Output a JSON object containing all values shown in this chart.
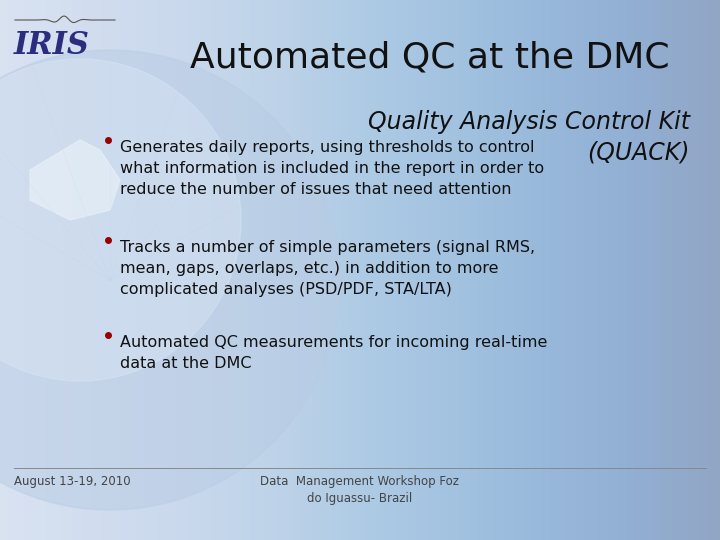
{
  "title": "Automated QC at the DMC",
  "subtitle": "Quality Analysis Control Kit\n(QUACK)",
  "bullet_points": [
    "Automated QC measurements for incoming real-time\ndata at the DMC",
    "Tracks a number of simple parameters (signal RMS,\nmean, gaps, overlaps, etc.) in addition to more\ncomplicated analyses (PSD/PDF, STA/LTA)",
    "Generates daily reports, using thresholds to control\nwhat information is included in the report in order to\nreduce the number of issues that need attention"
  ],
  "footer_left": "August 13-19, 2010",
  "footer_right": "Data  Management Workshop Foz\ndo Iguassu- Brazil",
  "bg_color": "#ccd8ec",
  "title_color": "#111111",
  "subtitle_color": "#111111",
  "bullet_color": "#111111",
  "bullet_marker_color": "#990000",
  "footer_color": "#444444",
  "iris_text_color": "#2b2d7e",
  "title_fontsize": 26,
  "subtitle_fontsize": 17,
  "bullet_fontsize": 11.5,
  "footer_fontsize": 8.5,
  "iris_fontsize": 22
}
